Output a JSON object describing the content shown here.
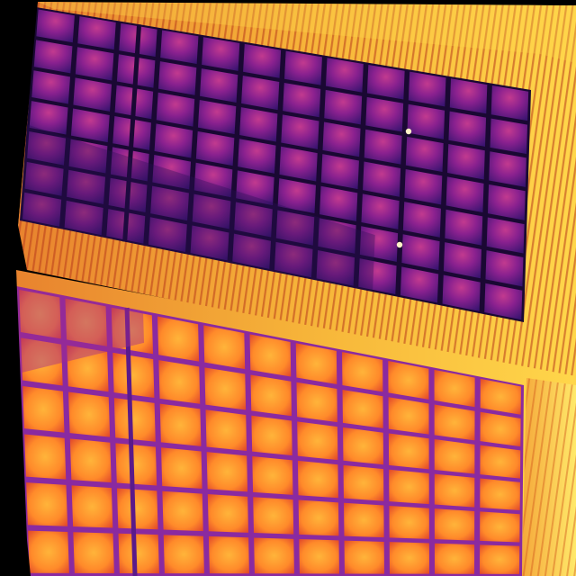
{
  "image": {
    "kind": "thermal-aerial-photo",
    "palette": "ironbow",
    "colors": {
      "background": "#000000",
      "roof_hot": "#f7b73a",
      "roof_ridge": "#ffe35a",
      "roof_shadow": "#b83a1c",
      "panel_cool_dark": "#2a0f55",
      "panel_cool_mid": "#6a1a8a",
      "panel_cool_edge": "#c23a8f",
      "panel_warm_center": "#ffa22a",
      "panel_warm_edge": "#e64a2a",
      "frame_cool": "#1a0833",
      "frame_warm": "#8a2aa0",
      "hotspot": "#fff3c8"
    }
  },
  "scene": {
    "upper_array": {
      "label": "cool-array",
      "rows": 7,
      "cols": 12,
      "hotspots": 2
    },
    "lower_array": {
      "label": "warm-array",
      "rows": 6,
      "cols": 11
    }
  }
}
